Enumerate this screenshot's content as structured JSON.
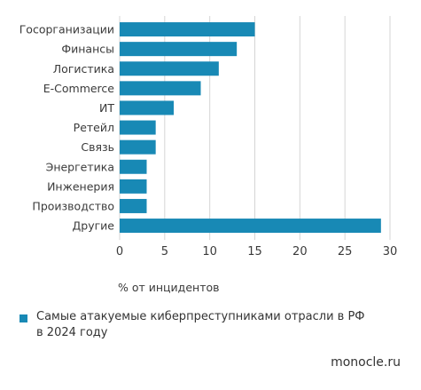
{
  "chart_data": {
    "type": "bar",
    "orientation": "horizontal",
    "categories": [
      "Госорганизации",
      "Финансы",
      "Логистика",
      "E-Commerce",
      "ИТ",
      "Ретейл",
      "Связь",
      "Энергетика",
      "Инженерия",
      "Производство",
      "Другие"
    ],
    "series": [
      {
        "name": "Самые атакуемые киберпреступниками отрасли в РФ в 2024 году",
        "values": [
          15,
          13,
          11,
          9,
          6,
          4,
          4,
          3,
          3,
          3,
          29
        ]
      }
    ],
    "xlabel": "% от инцидентов",
    "xlim": [
      0,
      30
    ],
    "xticks": [
      0,
      5,
      10,
      15,
      20,
      25,
      30
    ],
    "grid": true,
    "legend_position": "bottom-left"
  },
  "colors": {
    "bar": "#1889b5",
    "grid": "#d5d5d5"
  },
  "legend": {
    "line1": "Самые атакуемые киберпреступниками отрасли в РФ",
    "line2": "в 2024 году"
  },
  "brand": "monocle.ru"
}
